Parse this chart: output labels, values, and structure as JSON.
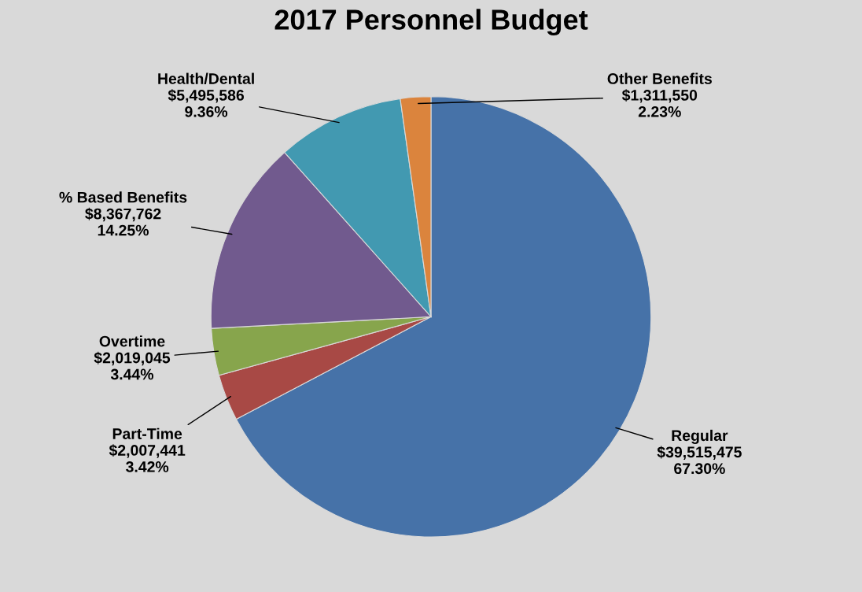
{
  "chart_data": {
    "type": "pie",
    "title": "2017 Personnel Budget",
    "categories": [
      "Regular",
      "Part-Time",
      "Overtime",
      "% Based Benefits",
      "Health/Dental",
      "Other Benefits"
    ],
    "values": [
      39515475,
      2007441,
      2019045,
      8367762,
      5495586,
      1311550
    ],
    "value_labels": [
      "$39,515,475\n67.30%",
      "$2,007,441\n3.42%",
      "$2,019,045\n3.44%",
      "$8,367,762\n14.25%",
      "$5,495,586\n9.36%",
      "$1,311,550\n2.23%"
    ],
    "colors": [
      "#4672a8",
      "#a84945",
      "#87a54c",
      "#715a8e",
      "#4299b1",
      "#db843d"
    ],
    "legend": false
  }
}
